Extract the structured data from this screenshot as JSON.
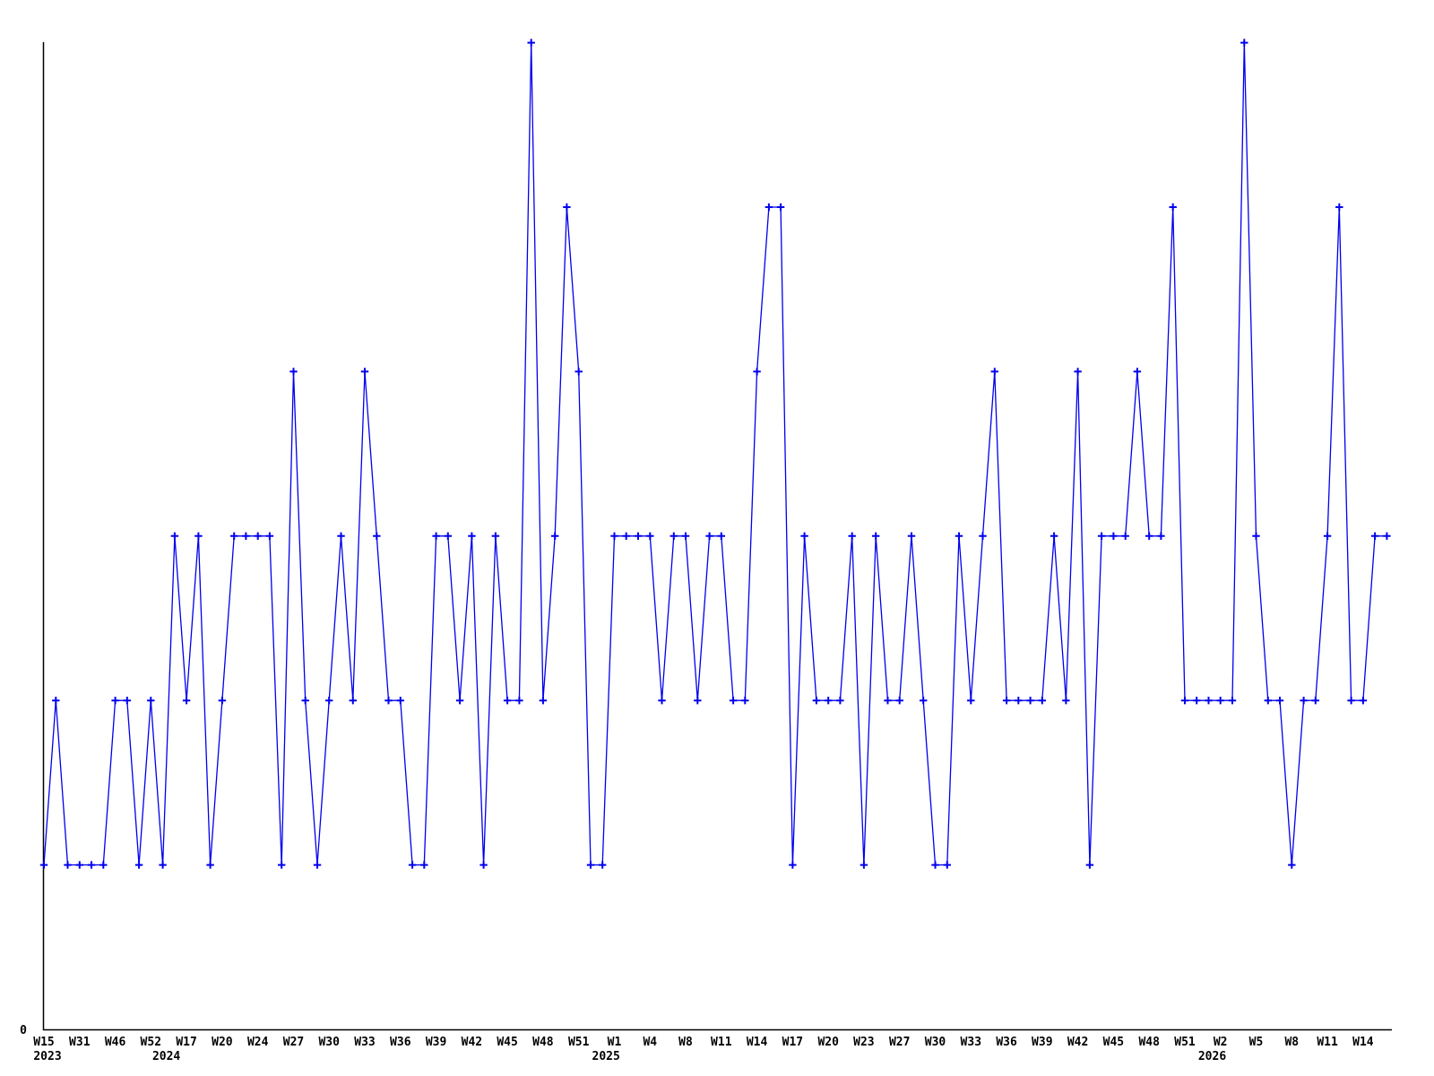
{
  "chart_data": {
    "type": "line",
    "title": "",
    "xlabel": "",
    "ylabel": "",
    "y_zero_label": "0",
    "ylim": [
      0,
      6
    ],
    "grid": false,
    "legend": "none",
    "marker": "plus-icon",
    "series_color": "#0000ee",
    "axis_color": "#000000",
    "tick_every": 3,
    "values": [
      1,
      2,
      1,
      1,
      1,
      1,
      2,
      2,
      1,
      2,
      1,
      3,
      2,
      3,
      1,
      2,
      3,
      3,
      3,
      3,
      1,
      4,
      2,
      1,
      2,
      3,
      2,
      4,
      3,
      2,
      2,
      1,
      1,
      3,
      3,
      2,
      3,
      1,
      3,
      2,
      2,
      6,
      2,
      3,
      5,
      4,
      1,
      1,
      3,
      3,
      3,
      3,
      2,
      3,
      3,
      2,
      3,
      3,
      2,
      2,
      4,
      5,
      5,
      1,
      3,
      2,
      2,
      2,
      3,
      1,
      3,
      2,
      2,
      3,
      2,
      1,
      1,
      3,
      2,
      3,
      4,
      2,
      2,
      2,
      2,
      3,
      2,
      4,
      1,
      3,
      3,
      3,
      4,
      3,
      3,
      5,
      2,
      2,
      2,
      2,
      2,
      6,
      3,
      2,
      2,
      1,
      2,
      2,
      3,
      5,
      2,
      2,
      3,
      3
    ],
    "tick_labels": [
      "W15",
      "W31",
      "W46",
      "W52",
      "W17",
      "W20",
      "W24",
      "W27",
      "W30",
      "W33",
      "W36",
      "W39",
      "W42",
      "W45",
      "W48",
      "W51",
      "W1",
      "W4",
      "W8",
      "W11",
      "W14",
      "W17",
      "W20",
      "W23",
      "W27",
      "W30",
      "W33",
      "W36",
      "W39",
      "W42",
      "W45",
      "W48",
      "W51",
      "W2",
      "W5",
      "W8",
      "W11",
      "W14"
    ],
    "year_labels": [
      {
        "text": "2023",
        "point_index": 0
      },
      {
        "text": "2024",
        "point_index": 10
      },
      {
        "text": "2025",
        "point_index": 47
      },
      {
        "text": "2026",
        "point_index": 98
      }
    ]
  }
}
